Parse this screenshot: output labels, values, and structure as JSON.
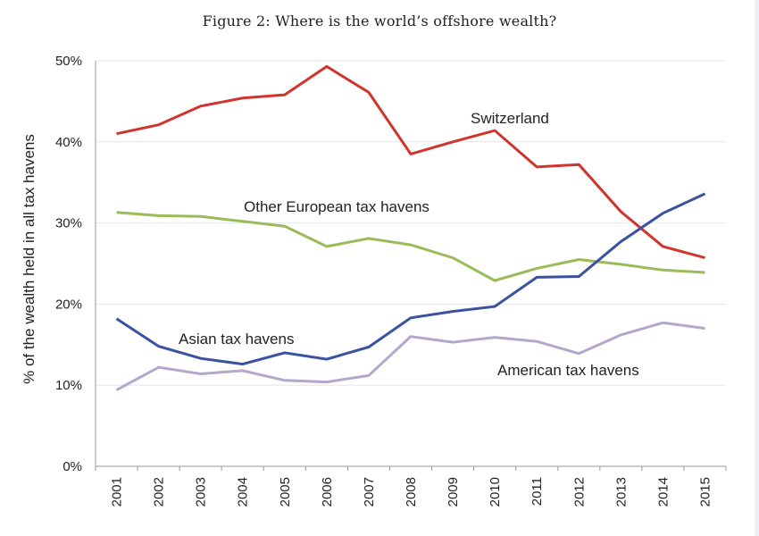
{
  "chart_data": {
    "type": "line",
    "title": "Figure 2: Where is the world’s offshore wealth?",
    "xlabel": "",
    "ylabel": "% of the wealth held in all tax havens",
    "x": [
      "2001",
      "2002",
      "2003",
      "2004",
      "2005",
      "2006",
      "2007",
      "2008",
      "2009",
      "2010",
      "2011",
      "2012",
      "2013",
      "2014",
      "2015"
    ],
    "ylim": [
      0,
      50
    ],
    "yticks": [
      0,
      10,
      20,
      30,
      40,
      50
    ],
    "ytick_labels": [
      "0%",
      "10%",
      "20%",
      "30%",
      "40%",
      "50%"
    ],
    "grid": true,
    "legend": "inline labels",
    "series": [
      {
        "name": "Switzerland",
        "color": "#d0342c",
        "values": [
          41.0,
          42.1,
          44.4,
          45.4,
          45.8,
          49.3,
          46.1,
          38.5,
          40.0,
          41.4,
          36.9,
          37.2,
          31.4,
          27.1,
          25.7
        ]
      },
      {
        "name": "Other European tax havens",
        "color": "#9bbb59",
        "values": [
          31.3,
          30.9,
          30.8,
          30.2,
          29.6,
          27.1,
          28.1,
          27.3,
          25.7,
          22.9,
          24.4,
          25.5,
          24.9,
          24.2,
          23.9
        ]
      },
      {
        "name": "Asian tax havens",
        "color": "#3a52a0",
        "values": [
          18.2,
          14.8,
          13.3,
          12.6,
          14.0,
          13.2,
          14.7,
          18.3,
          19.1,
          19.7,
          23.3,
          23.4,
          27.7,
          31.2,
          33.6
        ]
      },
      {
        "name": "American tax havens",
        "color": "#b4a7cc",
        "values": [
          9.4,
          12.2,
          11.4,
          11.8,
          10.6,
          10.4,
          11.2,
          16.0,
          15.3,
          15.9,
          15.4,
          13.9,
          16.2,
          17.7,
          17.0
        ]
      }
    ]
  }
}
